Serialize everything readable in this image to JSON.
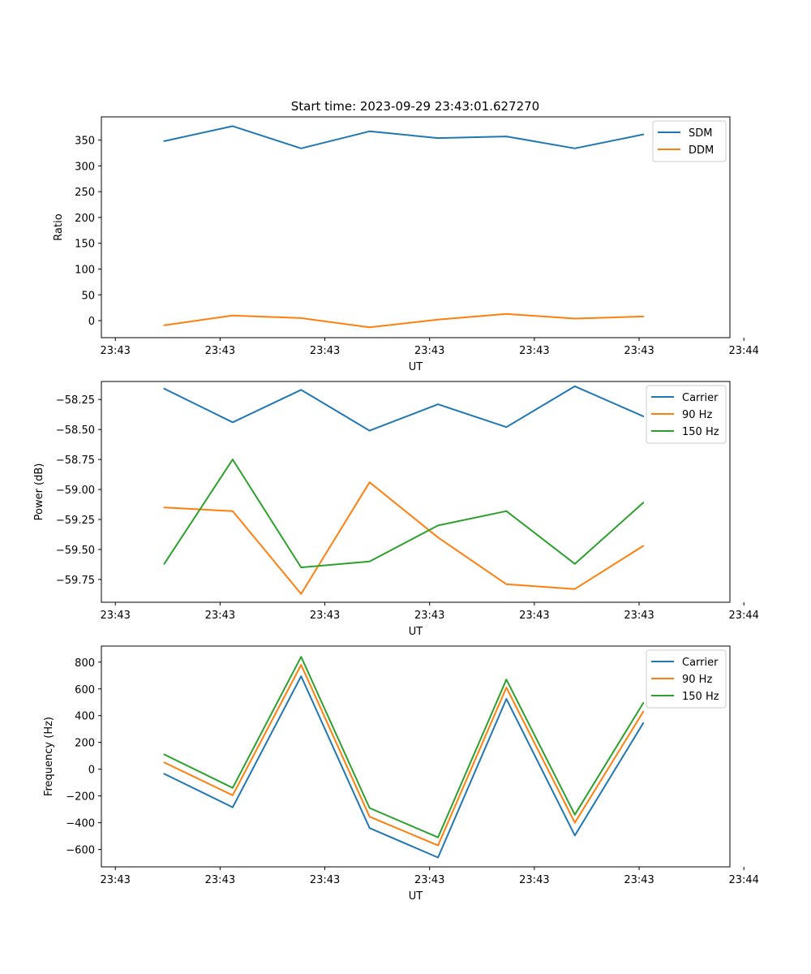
{
  "figure_title": "Start time: 2023-09-29 23:43:01.627270",
  "colors": {
    "blue": "#1f77b4",
    "orange": "#ff7f0e",
    "green": "#2ca02c"
  },
  "chart_data": [
    {
      "type": "line",
      "title": "Start time: 2023-09-29 23:43:01.627270",
      "xlabel": "UT",
      "ylabel": "Ratio",
      "xlim": [
        -0.2,
        8.8
      ],
      "ylim": [
        -33,
        395
      ],
      "x_ticks": [
        0,
        1.5,
        3,
        4.5,
        6,
        7.5,
        9
      ],
      "x_tick_labels": [
        "23:43",
        "23:43",
        "23:43",
        "23:43",
        "23:43",
        "23:43",
        "23:44"
      ],
      "y_ticks": [
        0,
        50,
        100,
        150,
        200,
        250,
        300,
        350
      ],
      "y_tick_labels": [
        "0",
        "50",
        "100",
        "150",
        "200",
        "250",
        "300",
        "350"
      ],
      "x": [
        0.7,
        1.68,
        2.66,
        3.64,
        4.62,
        5.6,
        6.58,
        7.56
      ],
      "legend_position": "top-right",
      "series": [
        {
          "name": "SDM",
          "color": "#1f77b4",
          "values": [
            348,
            377,
            334,
            367,
            354,
            357,
            334,
            361
          ]
        },
        {
          "name": "DDM",
          "color": "#ff7f0e",
          "values": [
            -9,
            10,
            5,
            -13,
            2,
            13,
            4,
            8
          ]
        }
      ]
    },
    {
      "type": "line",
      "xlabel": "UT",
      "ylabel": "Power (dB)",
      "xlim": [
        -0.2,
        8.8
      ],
      "ylim": [
        -59.94,
        -58.1
      ],
      "x_ticks": [
        0,
        1.5,
        3,
        4.5,
        6,
        7.5,
        9
      ],
      "x_tick_labels": [
        "23:43",
        "23:43",
        "23:43",
        "23:43",
        "23:43",
        "23:43",
        "23:44"
      ],
      "y_ticks": [
        -59.75,
        -59.5,
        -59.25,
        -59.0,
        -58.75,
        -58.5,
        -58.25
      ],
      "y_tick_labels": [
        "−59.75",
        "−59.50",
        "−59.25",
        "−59.00",
        "−58.75",
        "−58.50",
        "−58.25"
      ],
      "x": [
        0.7,
        1.68,
        2.66,
        3.64,
        4.62,
        5.6,
        6.58,
        7.56
      ],
      "legend_position": "top-right",
      "series": [
        {
          "name": "Carrier",
          "color": "#1f77b4",
          "values": [
            -58.16,
            -58.44,
            -58.17,
            -58.51,
            -58.29,
            -58.48,
            -58.14,
            -58.39
          ]
        },
        {
          "name": "90 Hz",
          "color": "#ff7f0e",
          "values": [
            -59.15,
            -59.18,
            -59.87,
            -58.94,
            -59.4,
            -59.79,
            -59.83,
            -59.47
          ]
        },
        {
          "name": "150 Hz",
          "color": "#2ca02c",
          "values": [
            -59.62,
            -58.75,
            -59.65,
            -59.6,
            -59.3,
            -59.18,
            -59.62,
            -59.11
          ]
        }
      ]
    },
    {
      "type": "line",
      "xlabel": "UT",
      "ylabel": "Frequency (Hz)",
      "xlim": [
        -0.2,
        8.8
      ],
      "ylim": [
        -730,
        920
      ],
      "x_ticks": [
        0,
        1.5,
        3,
        4.5,
        6,
        7.5,
        9
      ],
      "x_tick_labels": [
        "23:43",
        "23:43",
        "23:43",
        "23:43",
        "23:43",
        "23:43",
        "23:44"
      ],
      "y_ticks": [
        -600,
        -400,
        -200,
        0,
        200,
        400,
        600,
        800
      ],
      "y_tick_labels": [
        "−600",
        "−400",
        "−200",
        "0",
        "200",
        "400",
        "600",
        "800"
      ],
      "x": [
        0.7,
        1.68,
        2.66,
        3.64,
        4.62,
        5.6,
        6.58,
        7.56
      ],
      "legend_position": "top-right",
      "series": [
        {
          "name": "Carrier",
          "color": "#1f77b4",
          "values": [
            -35,
            -285,
            695,
            -440,
            -660,
            525,
            -495,
            345
          ]
        },
        {
          "name": "90 Hz",
          "color": "#ff7f0e",
          "values": [
            50,
            -195,
            780,
            -355,
            -570,
            610,
            -400,
            430
          ]
        },
        {
          "name": "150 Hz",
          "color": "#2ca02c",
          "values": [
            110,
            -140,
            840,
            -290,
            -510,
            670,
            -340,
            495
          ]
        }
      ]
    }
  ]
}
